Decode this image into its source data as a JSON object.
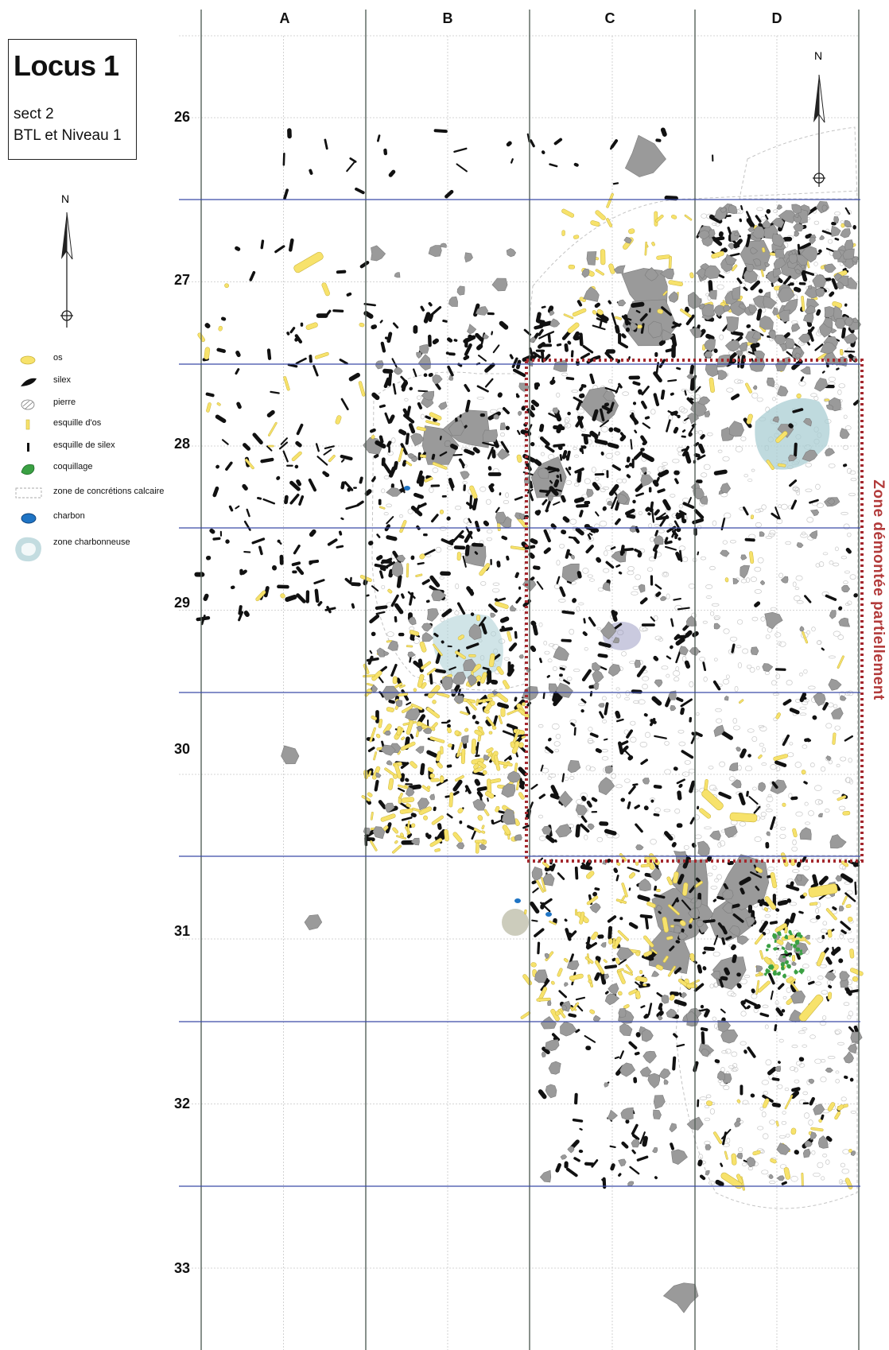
{
  "title": {
    "main": "Locus 1",
    "line1": "sect 2",
    "line2": "BTL et Niveau 1"
  },
  "north_label": "N",
  "columns": [
    "A",
    "B",
    "C",
    "D"
  ],
  "rows": [
    "26",
    "27",
    "28",
    "29",
    "30",
    "31",
    "32",
    "33"
  ],
  "legend": [
    {
      "label": "os",
      "icon": "bone-symbol",
      "color": "#f7e26b"
    },
    {
      "label": "silex",
      "icon": "flint-symbol",
      "color": "#111111"
    },
    {
      "label": "pierre",
      "icon": "stone-symbol",
      "color": "#9a9a9a"
    },
    {
      "label": "esquille d'os",
      "icon": "bone-splinter-symbol",
      "color": "#f7e26b"
    },
    {
      "label": "esquille de silex",
      "icon": "flint-splinter-symbol",
      "color": "#111111"
    },
    {
      "label": "coquillage",
      "icon": "shell-symbol",
      "color": "#3aa043"
    },
    {
      "label": "zone de concrétions calcaire",
      "icon": "limestone-zone-symbol",
      "color": "#bbbbbb"
    },
    {
      "label": "charbon",
      "icon": "charcoal-symbol",
      "color": "#1f74c4"
    },
    {
      "label": "zone charbonneuse",
      "icon": "charcoal-zone-symbol",
      "color": "#a9cdd3"
    }
  ],
  "zone_label": "Zone démontée partiellement",
  "colors": {
    "grid_major": "#3a4aa8",
    "grid_col": "#56625a",
    "grid_minor": "#c8c8c8",
    "bone": "#f7e26b",
    "flint": "#111111",
    "stone": "#9a9a9a",
    "shell": "#3aa043",
    "charcoal": "#1f74c4",
    "charcoal_zone": "#a9cdd3",
    "zone_border": "#a4282e",
    "zone_text": "#b23a3a"
  }
}
